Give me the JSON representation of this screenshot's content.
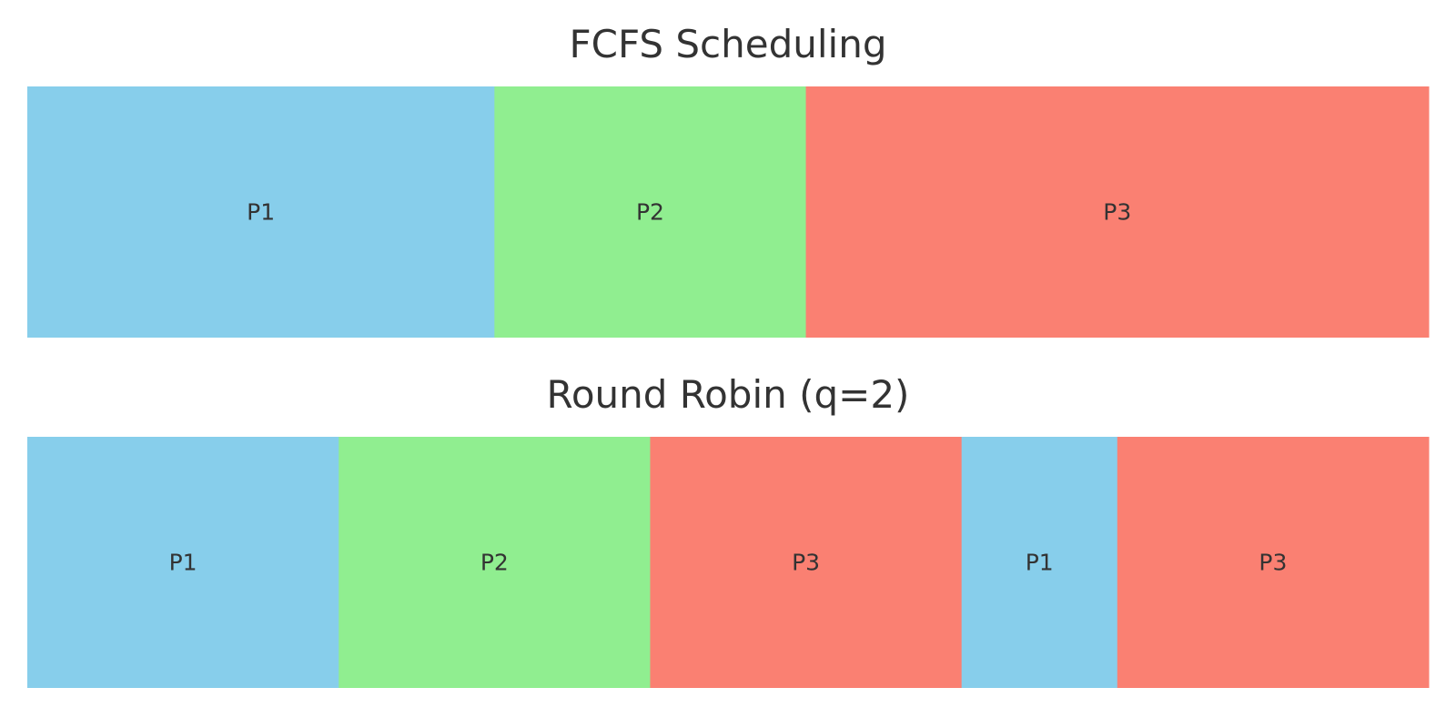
{
  "colors": {
    "P1": "#87CEEB",
    "P2": "#90EE90",
    "P3": "#FA8072"
  },
  "chart_data": [
    {
      "type": "bar",
      "title": "FCFS Scheduling",
      "xlim": [
        0,
        9
      ],
      "segments": [
        {
          "process": "P1",
          "start": 0,
          "end": 3
        },
        {
          "process": "P2",
          "start": 3,
          "end": 5
        },
        {
          "process": "P3",
          "start": 5,
          "end": 9
        }
      ]
    },
    {
      "type": "bar",
      "title": "Round Robin (q=2)",
      "xlim": [
        0,
        9
      ],
      "segments": [
        {
          "process": "P1",
          "start": 0,
          "end": 2
        },
        {
          "process": "P2",
          "start": 2,
          "end": 4
        },
        {
          "process": "P3",
          "start": 4,
          "end": 6
        },
        {
          "process": "P1",
          "start": 6,
          "end": 7
        },
        {
          "process": "P3",
          "start": 7,
          "end": 9
        }
      ]
    }
  ]
}
